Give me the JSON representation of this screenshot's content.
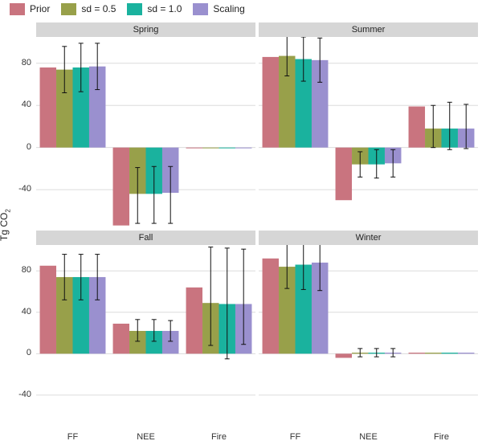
{
  "legend": [
    {
      "label": "Prior",
      "color": "#c9747f"
    },
    {
      "label": "sd = 0.5",
      "color": "#98a04a"
    },
    {
      "label": "sd = 1.0",
      "color": "#1ab29e"
    },
    {
      "label": "Scaling",
      "color": "#9a90cf"
    }
  ],
  "ylabel": {
    "main": "Tg CO",
    "sub": "2"
  },
  "chart_data": {
    "type": "bar",
    "categories": [
      "FF",
      "NEE",
      "Fire"
    ],
    "series_names": [
      "Prior",
      "sd = 0.5",
      "sd = 1.0",
      "Scaling"
    ],
    "ylim": [
      -75,
      105
    ],
    "yticks": [
      "80",
      "40",
      "0",
      "-40"
    ],
    "ytick_values": [
      80,
      40,
      0,
      -40
    ],
    "grid": true,
    "legend_position": "top-left",
    "panels": [
      {
        "title": "Spring",
        "series": [
          {
            "name": "Prior",
            "values": [
              76,
              -74,
              0
            ],
            "errors": [
              null,
              null,
              null
            ]
          },
          {
            "name": "sd = 0.5",
            "values": [
              74,
              -44,
              0
            ],
            "errors": [
              [
                52,
                96
              ],
              [
                -72,
                -19
              ],
              null
            ]
          },
          {
            "name": "sd = 1.0",
            "values": [
              76,
              -44,
              0
            ],
            "errors": [
              [
                53,
                99
              ],
              [
                -72,
                -18
              ],
              null
            ]
          },
          {
            "name": "Scaling",
            "values": [
              77,
              -43,
              0
            ],
            "errors": [
              [
                55,
                99
              ],
              [
                -72,
                -18
              ],
              null
            ]
          }
        ]
      },
      {
        "title": "Summer",
        "series": [
          {
            "name": "Prior",
            "values": [
              86,
              -50,
              39
            ],
            "errors": [
              null,
              null,
              null
            ]
          },
          {
            "name": "sd = 0.5",
            "values": [
              87,
              -16,
              18
            ],
            "errors": [
              [
                68,
                106
              ],
              [
                -28,
                -4
              ],
              [
                0,
                40
              ]
            ]
          },
          {
            "name": "sd = 1.0",
            "values": [
              84,
              -16,
              18
            ],
            "errors": [
              [
                63,
                105
              ],
              [
                -29,
                -2
              ],
              [
                -2,
                43
              ]
            ]
          },
          {
            "name": "Scaling",
            "values": [
              83,
              -15,
              18
            ],
            "errors": [
              [
                62,
                104
              ],
              [
                -28,
                -2
              ],
              [
                -1,
                41
              ]
            ]
          }
        ]
      },
      {
        "title": "Fall",
        "series": [
          {
            "name": "Prior",
            "values": [
              85,
              29,
              64
            ],
            "errors": [
              null,
              null,
              null
            ]
          },
          {
            "name": "sd = 0.5",
            "values": [
              74,
              22,
              49
            ],
            "errors": [
              [
                52,
                96
              ],
              [
                12,
                33
              ],
              [
                8,
                103
              ]
            ]
          },
          {
            "name": "sd = 1.0",
            "values": [
              74,
              22,
              48
            ],
            "errors": [
              [
                52,
                96
              ],
              [
                12,
                33
              ],
              [
                -5,
                102
              ]
            ]
          },
          {
            "name": "Scaling",
            "values": [
              74,
              22,
              48
            ],
            "errors": [
              [
                52,
                96
              ],
              [
                12,
                32
              ],
              [
                9,
                101
              ]
            ]
          }
        ]
      },
      {
        "title": "Winter",
        "series": [
          {
            "name": "Prior",
            "values": [
              92,
              -4,
              1
            ],
            "errors": [
              null,
              null,
              null
            ]
          },
          {
            "name": "sd = 0.5",
            "values": [
              84,
              1,
              1
            ],
            "errors": [
              [
                63,
                110
              ],
              [
                -3,
                5
              ],
              null
            ]
          },
          {
            "name": "sd = 1.0",
            "values": [
              86,
              1,
              1
            ],
            "errors": [
              [
                62,
                113
              ],
              [
                -3,
                5
              ],
              null
            ]
          },
          {
            "name": "Scaling",
            "values": [
              88,
              1,
              1
            ],
            "errors": [
              [
                61,
                116
              ],
              [
                -3,
                5
              ],
              null
            ]
          }
        ]
      }
    ]
  }
}
